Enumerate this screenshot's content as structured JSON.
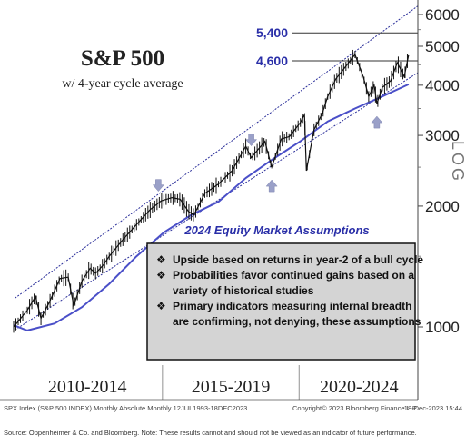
{
  "chart_data": {
    "type": "line",
    "title": "S&P 500",
    "subtitle": "w/ 4-year cycle average",
    "scale": "log",
    "ylim": [
      950,
      6200
    ],
    "y_ticks": [
      1000,
      2000,
      3000,
      4000,
      5000,
      6000
    ],
    "y_axis_label": "LOG",
    "x_periods": [
      "2010-2014",
      "2015-2019",
      "2020-2024"
    ],
    "price_levels": [
      {
        "label": "5,400",
        "value": 5400
      },
      {
        "label": "4,600",
        "value": 4600
      }
    ],
    "series": [
      {
        "name": "",
        "x": [
          2009.5,
          2010.0,
          2010.3,
          2010.5,
          2010.8,
          2011.2,
          2011.5,
          2011.7,
          2012.0,
          2012.3,
          2012.5,
          2012.8,
          2013.0,
          2013.5,
          2014.0,
          2014.5,
          2014.9,
          2015.3,
          2015.6,
          2015.9,
          2016.1,
          2016.5,
          2017.0,
          2017.5,
          2018.0,
          2018.2,
          2018.7,
          2018.95,
          2019.3,
          2019.6,
          2020.0,
          2020.15,
          2020.22,
          2020.5,
          2020.8,
          2021.0,
          2021.3,
          2021.6,
          2021.8,
          2022.0,
          2022.3,
          2022.5,
          2022.7,
          2022.8,
          2023.0,
          2023.3,
          2023.55,
          2023.8,
          2023.96
        ],
        "values": [
          1000,
          1100,
          1190,
          1050,
          1150,
          1320,
          1330,
          1130,
          1300,
          1400,
          1360,
          1430,
          1500,
          1650,
          1800,
          1960,
          2060,
          2100,
          2080,
          1940,
          1900,
          2150,
          2270,
          2450,
          2820,
          2640,
          2900,
          2500,
          2940,
          2980,
          3230,
          3380,
          2450,
          3100,
          3400,
          3750,
          4150,
          4400,
          4580,
          4770,
          4200,
          3750,
          4000,
          3600,
          3950,
          4100,
          4550,
          4200,
          4750
        ]
      },
      {
        "name": "",
        "x": [
          2009.5,
          2010.0,
          2011.0,
          2012.0,
          2013.0,
          2014.0,
          2015.0,
          2016.0,
          2017.0,
          2018.0,
          2019.0,
          2020.0,
          2021.0,
          2022.0,
          2023.0,
          2023.96
        ],
        "values": [
          1010,
          980,
          1020,
          1120,
          1280,
          1500,
          1720,
          1900,
          2050,
          2350,
          2620,
          2900,
          3250,
          3500,
          3750,
          4020
        ]
      }
    ],
    "cycle_markers": [
      {
        "direction": "down",
        "x": 2014.8
      },
      {
        "direction": "down",
        "x": 2018.2
      },
      {
        "direction": "up",
        "x": 2018.95
      },
      {
        "direction": "up",
        "x": 2022.8
      }
    ]
  },
  "assumptions": {
    "heading": "2024 Equity Market Assumptions",
    "bullets": [
      [
        "Upside based on returns in year-2 of a bull cycle"
      ],
      [
        "Probabilities favor continued gains based on a",
        "variety of historical studies"
      ],
      [
        "Primary indicators measuring internal breadth",
        "are confirming, not denying, these assumptions"
      ]
    ]
  },
  "footer": {
    "index_info": "SPX Index (S&P 500 INDEX) Monthly Absolute Monthly 12JUL1993-18DEC2023",
    "copyright": "Copyright© 2023 Bloomberg Finance L.P.",
    "date": "18-Dec-2023 15:44",
    "source": "Source: Oppenheimer & Co. and Bloomberg. Note: These results cannot and should not be viewed as an indicator of future performance."
  },
  "colors": {
    "price": "#111111",
    "average": "#4a4fc8",
    "channel": "#2b2f9a",
    "level_label": "#2a2fa8",
    "heading": "#2a2fa8",
    "marker": "#9aa0c8",
    "box_fill": "#d4d4d4"
  }
}
